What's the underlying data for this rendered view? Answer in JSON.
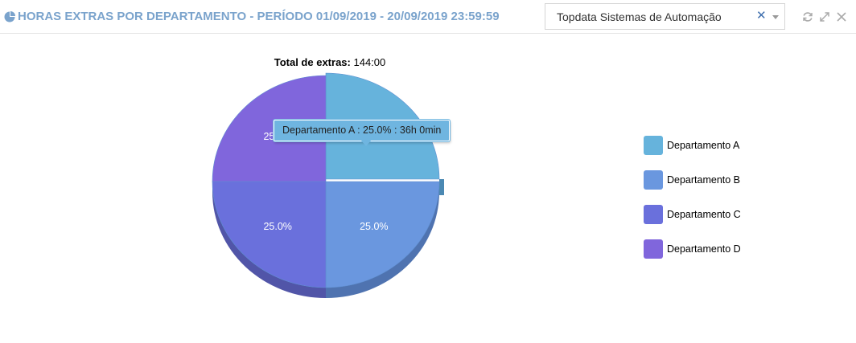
{
  "header": {
    "title": "HORAS EXTRAS POR DEPARTAMENTO - PERÍODO 01/09/2019 - 20/09/2019 23:59:59",
    "company_select_value": "Topdata Sistemas de Automação",
    "clear_symbol": "✕"
  },
  "icons": [
    "pie-chart-icon",
    "close-icon",
    "chevron-down-icon",
    "refresh-icon",
    "expand-icon",
    "close-icon"
  ],
  "chart_data": {
    "type": "pie",
    "total_label": "Total de extras:",
    "total_value": "144:00",
    "slices": [
      {
        "name": "Departamento A",
        "value": 25.0,
        "label": "25.0%",
        "color": "#66b3dc",
        "side_color": "#4b89b3",
        "hours": "36h 0min"
      },
      {
        "name": "Departamento B",
        "value": 25.0,
        "label": "25.0%",
        "color": "#6a97df",
        "side_color": "#4f73b0"
      },
      {
        "name": "Departamento C",
        "value": 25.0,
        "label": "25.0%",
        "color": "#6a70dc",
        "side_color": "#5155a8"
      },
      {
        "name": "Departamento D",
        "value": 25.0,
        "label": "25.0%",
        "color": "#8066dc",
        "side_color": "#6048ac"
      }
    ],
    "tooltip": "Departamento A : 25.0% : 36h 0min",
    "legend_position": "right"
  }
}
